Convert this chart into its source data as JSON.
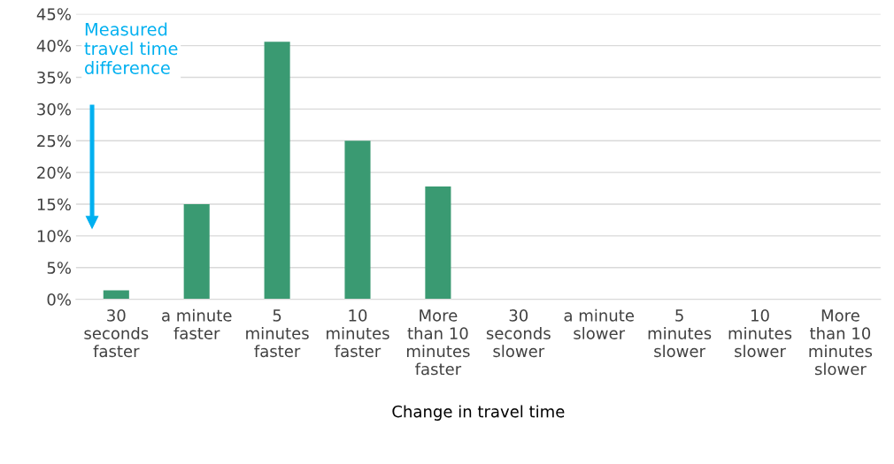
{
  "chart_data": {
    "type": "bar",
    "xlabel": "Change in travel time",
    "categories": [
      "30\nseconds\nfaster",
      "a minute\nfaster",
      "5\nminutes\nfaster",
      "10\nminutes\nfaster",
      "More\nthan 10\nminutes\nfaster",
      "30\nseconds\nslower",
      "a minute\nslower",
      "5\nminutes\nslower",
      "10\nminutes\nslower",
      "More\nthan 10\nminutes\nslower"
    ],
    "values": [
      1.4,
      15,
      40.6,
      25,
      17.8,
      0,
      0,
      0,
      0,
      0
    ],
    "color": "#3a9a72",
    "ylim": [
      0,
      45
    ],
    "yticks": [
      {
        "value": 0,
        "label": "0%"
      },
      {
        "value": 5,
        "label": "5%"
      },
      {
        "value": 10,
        "label": "10%"
      },
      {
        "value": 15,
        "label": "15%"
      },
      {
        "value": 20,
        "label": "20%"
      },
      {
        "value": 25,
        "label": "25%"
      },
      {
        "value": 30,
        "label": "30%"
      },
      {
        "value": 35,
        "label": "35%"
      },
      {
        "value": 40,
        "label": "40%"
      },
      {
        "value": 45,
        "label": "45%"
      }
    ],
    "grid": "y",
    "annotations": [
      "Measured\ntravel time\ndifference"
    ]
  }
}
